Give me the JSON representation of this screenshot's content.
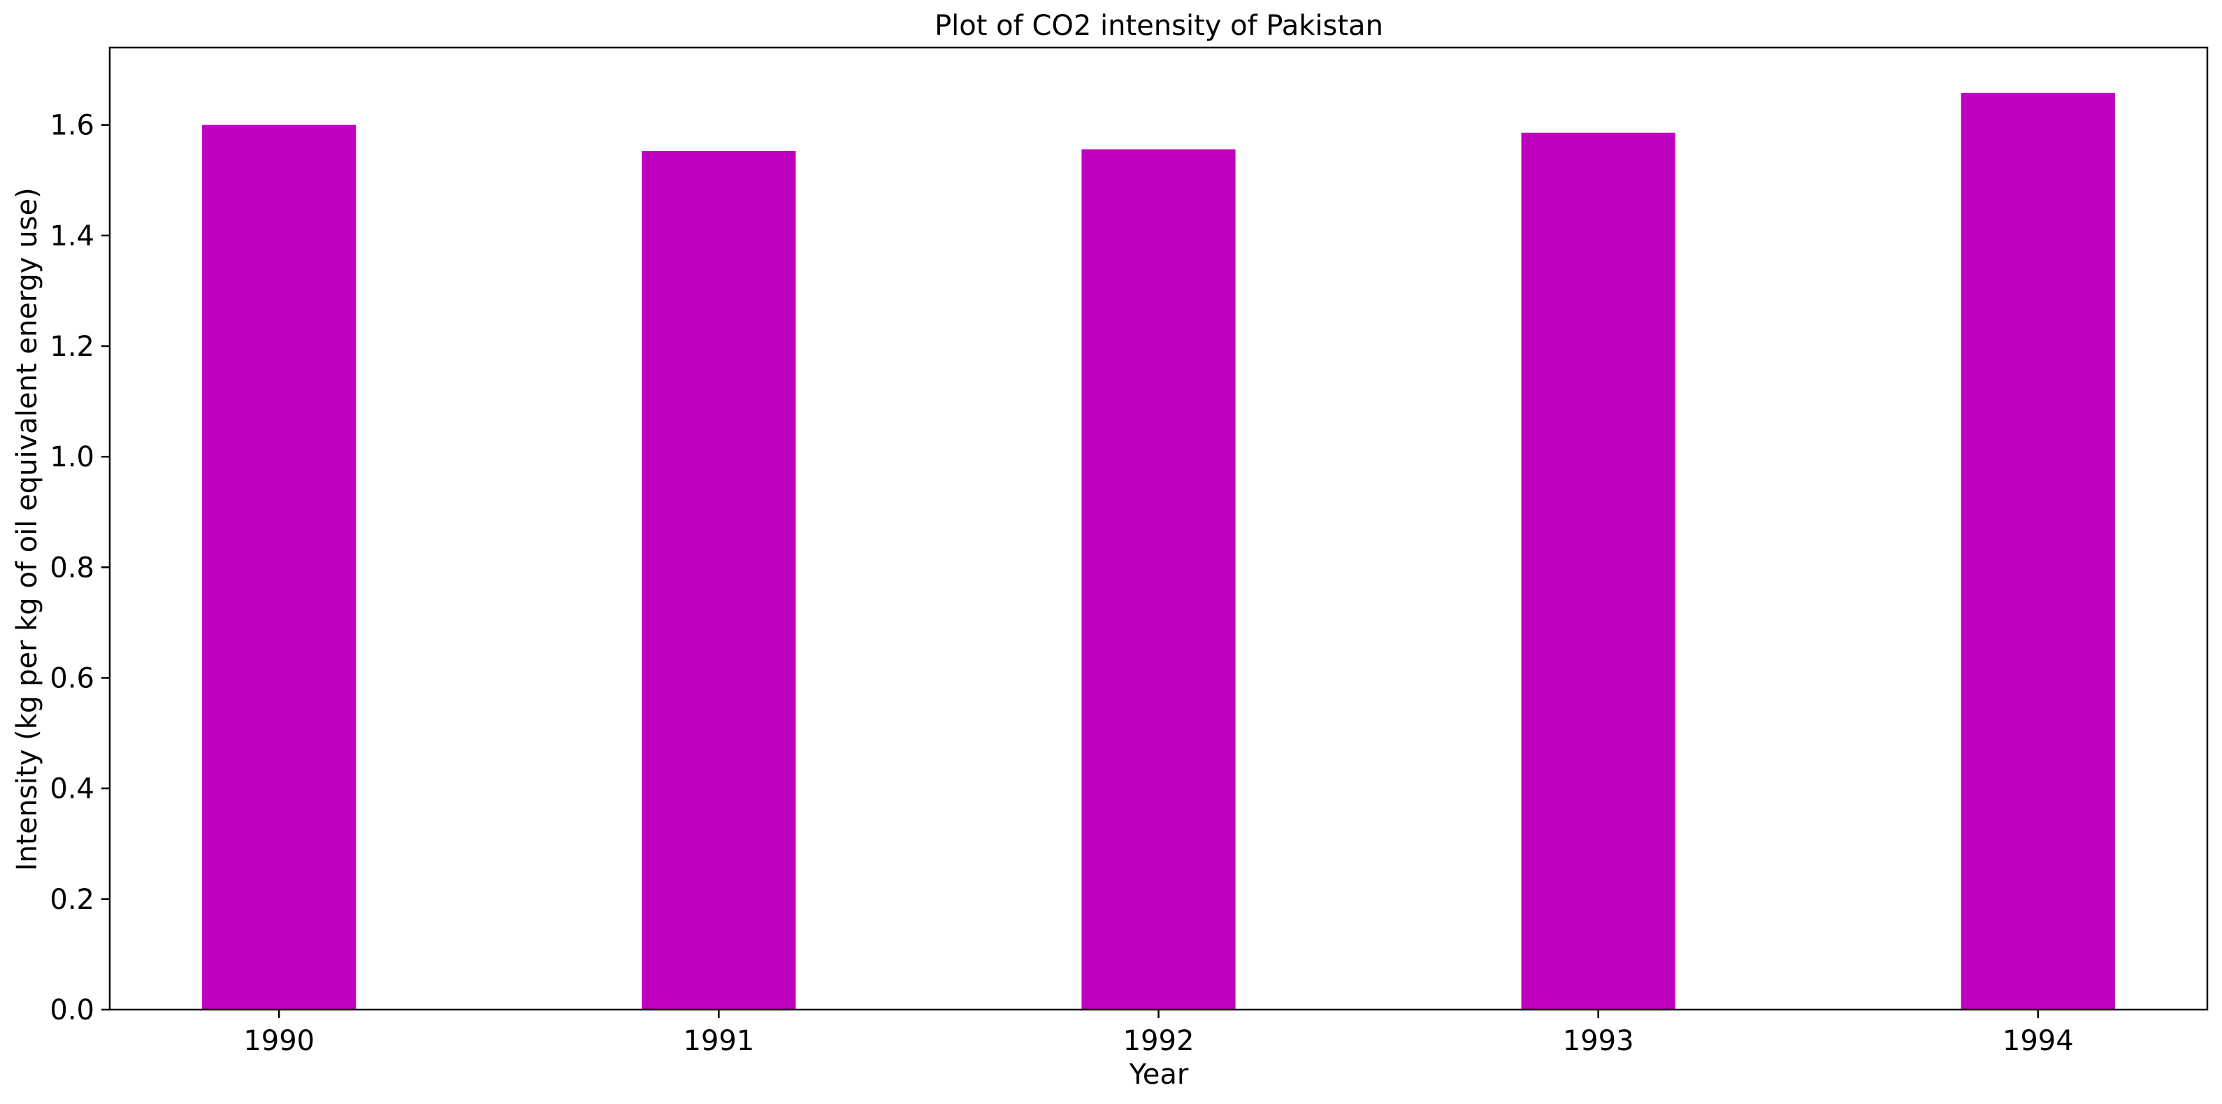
{
  "chart_data": {
    "type": "bar",
    "title": "Plot of CO2 intensity of Pakistan",
    "xlabel": "Year",
    "ylabel": "Intensity (kg per kg of oil equivalent energy use)",
    "categories": [
      "1990",
      "1991",
      "1992",
      "1993",
      "1994"
    ],
    "values": [
      1.6,
      1.553,
      1.556,
      1.586,
      1.658
    ],
    "ylim": [
      0,
      1.74
    ],
    "yticks": [
      0.0,
      0.2,
      0.4,
      0.6,
      0.8,
      1.0,
      1.2,
      1.4,
      1.6
    ],
    "ytick_labels": [
      "0.0",
      "0.2",
      "0.4",
      "0.6",
      "0.8",
      "1.0",
      "1.2",
      "1.4",
      "1.6"
    ],
    "bar_color": "#bf00bf",
    "grid": false,
    "legend": "none"
  }
}
